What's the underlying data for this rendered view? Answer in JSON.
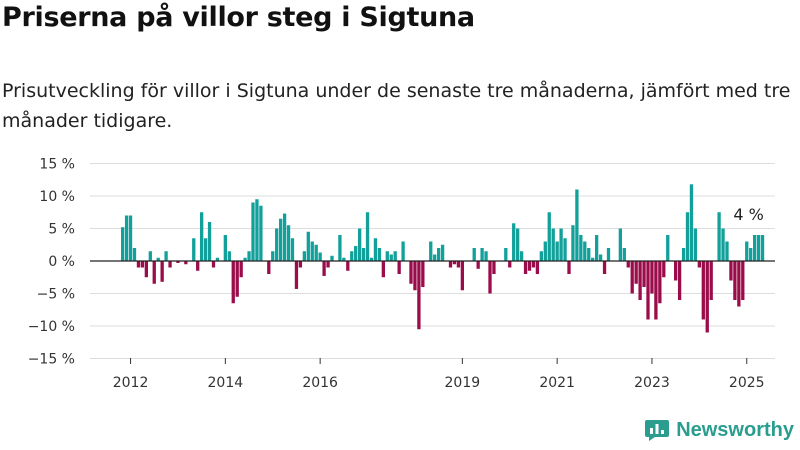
{
  "title": "Priserna på villor steg i Sigtuna",
  "subtitle": "Prisutveckling för villor i Sigtuna under de senaste tre månaderna, jämfört med tre månader tidigare.",
  "brand": {
    "name": "Newsworthy",
    "color": "#2a9d8f"
  },
  "colors": {
    "positive": "#11a09a",
    "negative": "#9b0c4a",
    "grid": "#dddddd",
    "zero": "#222222"
  },
  "chart_data": {
    "type": "bar",
    "x_start": "2011-11",
    "x_step": "month",
    "ylim": [
      -15,
      15
    ],
    "y_ticks": [
      15,
      10,
      5,
      0,
      -5,
      -10,
      -15
    ],
    "y_tick_labels": [
      "15 %",
      "10 %",
      "5 %",
      "0 %",
      "−5 %",
      "−10 %",
      "−15 %"
    ],
    "x_ticks": [
      "2012",
      "2014",
      "2016",
      "2019",
      "2021",
      "2023",
      "2025"
    ],
    "grid": true,
    "annotation": "4 %",
    "values": [
      5.2,
      7,
      7,
      2,
      -1,
      -1,
      -2.5,
      1.5,
      -3.5,
      0.5,
      -3.2,
      1.5,
      -1,
      0,
      -0.3,
      0,
      -0.5,
      0,
      3.5,
      -1.5,
      7.5,
      3.5,
      6,
      -1,
      0.5,
      0,
      4,
      1.5,
      -6.5,
      -5.5,
      -2.5,
      0.5,
      1.5,
      9,
      9.5,
      8.5,
      0,
      -2,
      1.5,
      5,
      6.5,
      7.3,
      5.5,
      3.5,
      -4.3,
      -1,
      1.5,
      4.5,
      3,
      2.5,
      1.3,
      -2.3,
      -1,
      0.8,
      0,
      4,
      0.5,
      -1.5,
      1.5,
      2.3,
      5,
      2,
      7.5,
      0.5,
      3.5,
      2,
      -2.5,
      1.5,
      1,
      1.5,
      -2,
      3,
      0,
      -3.5,
      -4.5,
      -10.5,
      -4,
      0,
      3,
      1,
      2,
      2.5,
      0,
      -1,
      -0.5,
      -1,
      -4.5,
      0,
      0,
      2,
      -1.2,
      2,
      1.5,
      -5,
      -2,
      0,
      0,
      2,
      -1,
      5.8,
      5,
      1.5,
      -2,
      -1.5,
      -1,
      -2,
      1.5,
      3,
      7.5,
      5,
      3,
      5,
      3.5,
      -2,
      5.5,
      11,
      4,
      3,
      2,
      0.5,
      4,
      1,
      -2,
      2,
      0,
      0,
      5,
      2,
      -1,
      -5,
      -3.5,
      -6,
      -4,
      -9,
      -5,
      -9,
      -6.5,
      -2.5,
      4,
      0,
      -3,
      -6,
      2,
      7.5,
      11.8,
      5,
      -1,
      -9,
      -11,
      -6,
      0,
      7.5,
      5,
      3,
      -3,
      -6,
      -7,
      -6,
      3,
      2,
      4,
      4,
      4
    ]
  }
}
